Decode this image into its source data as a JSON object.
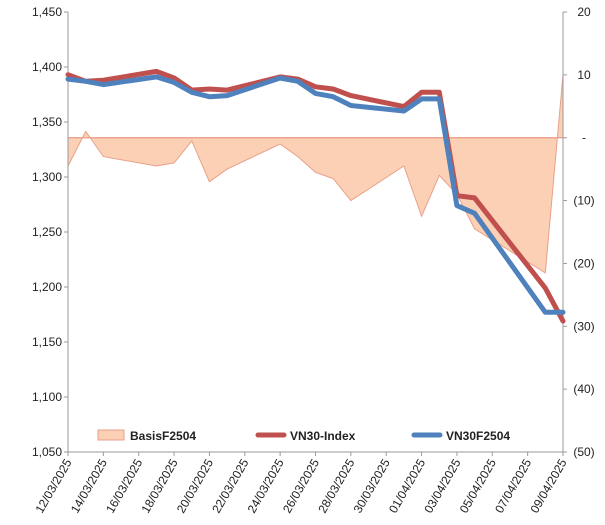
{
  "chart_data": {
    "type": "line",
    "title": "",
    "xlabel": "",
    "ylabel": "",
    "categories": [
      "12/03/2025",
      "13/03/2025",
      "14/03/2025",
      "17/03/2025",
      "18/03/2025",
      "19/03/2025",
      "20/03/2025",
      "21/03/2025",
      "24/03/2025",
      "25/03/2025",
      "26/03/2025",
      "27/03/2025",
      "28/03/2025",
      "31/03/2025",
      "01/04/2025",
      "02/04/2025",
      "03/04/2025",
      "04/04/2025",
      "08/04/2025",
      "09/04/2025"
    ],
    "x_tick_labels": [
      "12/03/2025",
      "14/03/2025",
      "16/03/2025",
      "18/03/2025",
      "20/03/2025",
      "22/03/2025",
      "24/03/2025",
      "26/03/2025",
      "28/03/2025",
      "30/03/2025",
      "01/04/2025",
      "03/04/2025",
      "05/04/2025",
      "07/04/2025",
      "09/04/2025"
    ],
    "x_range": [
      "12/03/2025",
      "09/04/2025"
    ],
    "y_left": {
      "range": [
        1050,
        1450
      ],
      "ticks": [
        1050,
        1100,
        1150,
        1200,
        1250,
        1300,
        1350,
        1400,
        1450
      ],
      "tick_labels": [
        "1,050",
        "1,100",
        "1,150",
        "1,200",
        "1,250",
        "1,300",
        "1,350",
        "1,400",
        "1,450"
      ]
    },
    "y_right": {
      "range": [
        -50,
        20
      ],
      "ticks": [
        20,
        10,
        0,
        -10,
        -20,
        -30,
        -40,
        -50
      ],
      "tick_labels": [
        "20",
        "10",
        "-",
        "(10)",
        "(20)",
        "(30)",
        "(40)",
        "(50)"
      ]
    },
    "grid": false,
    "legend_position": "bottom",
    "series": [
      {
        "name": "BasisF2504",
        "type": "area",
        "axis": "right",
        "color": "#fcd0b4",
        "edge_color": "#e8a08a",
        "x": [
          "12/03/2025",
          "13/03/2025",
          "14/03/2025",
          "17/03/2025",
          "18/03/2025",
          "19/03/2025",
          "20/03/2025",
          "21/03/2025",
          "24/03/2025",
          "25/03/2025",
          "26/03/2025",
          "27/03/2025",
          "28/03/2025",
          "31/03/2025",
          "01/04/2025",
          "02/04/2025",
          "03/04/2025",
          "04/04/2025",
          "08/04/2025",
          "09/04/2025"
        ],
        "values": [
          -4.5,
          1.0,
          -3.0,
          -4.5,
          -4.0,
          -0.5,
          -7.0,
          -5.0,
          -1.0,
          -3.0,
          -5.5,
          -6.5,
          -10.0,
          -4.5,
          -12.5,
          -6.0,
          -9.0,
          -14.5,
          -21.5,
          10.0
        ]
      },
      {
        "name": "VN30-Index",
        "type": "line",
        "axis": "left",
        "color": "#c0504d",
        "x": [
          "12/03/2025",
          "13/03/2025",
          "14/03/2025",
          "17/03/2025",
          "18/03/2025",
          "19/03/2025",
          "20/03/2025",
          "21/03/2025",
          "24/03/2025",
          "25/03/2025",
          "26/03/2025",
          "27/03/2025",
          "28/03/2025",
          "31/03/2025",
          "01/04/2025",
          "02/04/2025",
          "03/04/2025",
          "04/04/2025",
          "08/04/2025",
          "09/04/2025"
        ],
        "values": [
          1393,
          1387,
          1388,
          1396,
          1390,
          1379,
          1380,
          1379,
          1391,
          1389,
          1382,
          1380,
          1374,
          1364,
          1377,
          1377,
          1283,
          1281,
          1199,
          1169
        ]
      },
      {
        "name": "VN30F2504",
        "type": "line",
        "axis": "left",
        "color": "#4f81bd",
        "x": [
          "12/03/2025",
          "13/03/2025",
          "14/03/2025",
          "17/03/2025",
          "18/03/2025",
          "19/03/2025",
          "20/03/2025",
          "21/03/2025",
          "24/03/2025",
          "25/03/2025",
          "26/03/2025",
          "27/03/2025",
          "28/03/2025",
          "31/03/2025",
          "01/04/2025",
          "02/04/2025",
          "03/04/2025",
          "04/04/2025",
          "08/04/2025",
          "09/04/2025"
        ],
        "values": [
          1389,
          1387,
          1384,
          1391,
          1386,
          1377,
          1373,
          1374,
          1390,
          1387,
          1376,
          1373,
          1365,
          1360,
          1371,
          1371,
          1274,
          1267,
          1177,
          1177
        ]
      }
    ]
  }
}
